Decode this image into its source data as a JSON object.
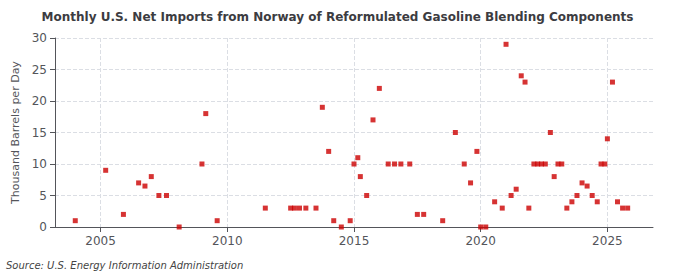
{
  "chart_data": {
    "type": "scatter",
    "title": "Monthly U.S. Net Imports from Norway of Reformulated Gasoline Blending Components",
    "ylabel": "Thousand Barrels per Day",
    "annotation": "Source: U.S. Energy Information Administration",
    "color": "#cc0000",
    "marker": "square",
    "grid": true,
    "xlim": [
      2003.2,
      2026.8
    ],
    "xticks": [
      2005,
      2010,
      2015,
      2020,
      2025
    ],
    "ylim": [
      0,
      30
    ],
    "yticks": [
      0,
      5,
      10,
      15,
      20,
      25,
      30
    ],
    "x": [
      2004.0,
      2005.2,
      2005.9,
      2006.5,
      2006.75,
      2007.0,
      2007.3,
      2007.6,
      2008.1,
      2009.0,
      2009.15,
      2009.6,
      2011.5,
      2012.5,
      2012.65,
      2012.85,
      2013.1,
      2013.5,
      2013.75,
      2014.0,
      2014.2,
      2014.5,
      2014.85,
      2015.0,
      2015.15,
      2015.25,
      2015.5,
      2015.75,
      2016.0,
      2016.35,
      2016.6,
      2016.85,
      2017.2,
      2017.5,
      2017.75,
      2018.5,
      2019.0,
      2019.35,
      2019.6,
      2019.85,
      2020.0,
      2020.2,
      2020.55,
      2020.85,
      2021.0,
      2021.2,
      2021.4,
      2021.6,
      2021.75,
      2021.9,
      2022.1,
      2022.25,
      2022.4,
      2022.55,
      2022.75,
      2022.9,
      2023.05,
      2023.2,
      2023.4,
      2023.6,
      2023.8,
      2024.0,
      2024.2,
      2024.4,
      2024.6,
      2024.75,
      2024.9,
      2025.0,
      2025.2,
      2025.4,
      2025.6,
      2025.8
    ],
    "values": [
      1.0,
      9.0,
      2.0,
      7.0,
      6.5,
      8.0,
      5.0,
      5.0,
      0.0,
      10.0,
      18.0,
      1.0,
      3.0,
      3.0,
      3.0,
      3.0,
      3.0,
      3.0,
      19.0,
      12.0,
      1.0,
      0.0,
      1.0,
      10.0,
      11.0,
      8.0,
      5.0,
      17.0,
      22.0,
      10.0,
      10.0,
      10.0,
      10.0,
      2.0,
      2.0,
      1.0,
      15.0,
      10.0,
      7.0,
      12.0,
      0.0,
      0.0,
      4.0,
      3.0,
      29.0,
      5.0,
      6.0,
      24.0,
      23.0,
      3.0,
      10.0,
      10.0,
      10.0,
      10.0,
      15.0,
      8.0,
      10.0,
      10.0,
      3.0,
      4.0,
      5.0,
      7.0,
      6.5,
      5.0,
      4.0,
      10.0,
      10.0,
      14.0,
      23.0,
      4.0,
      3.0,
      3.0
    ]
  }
}
